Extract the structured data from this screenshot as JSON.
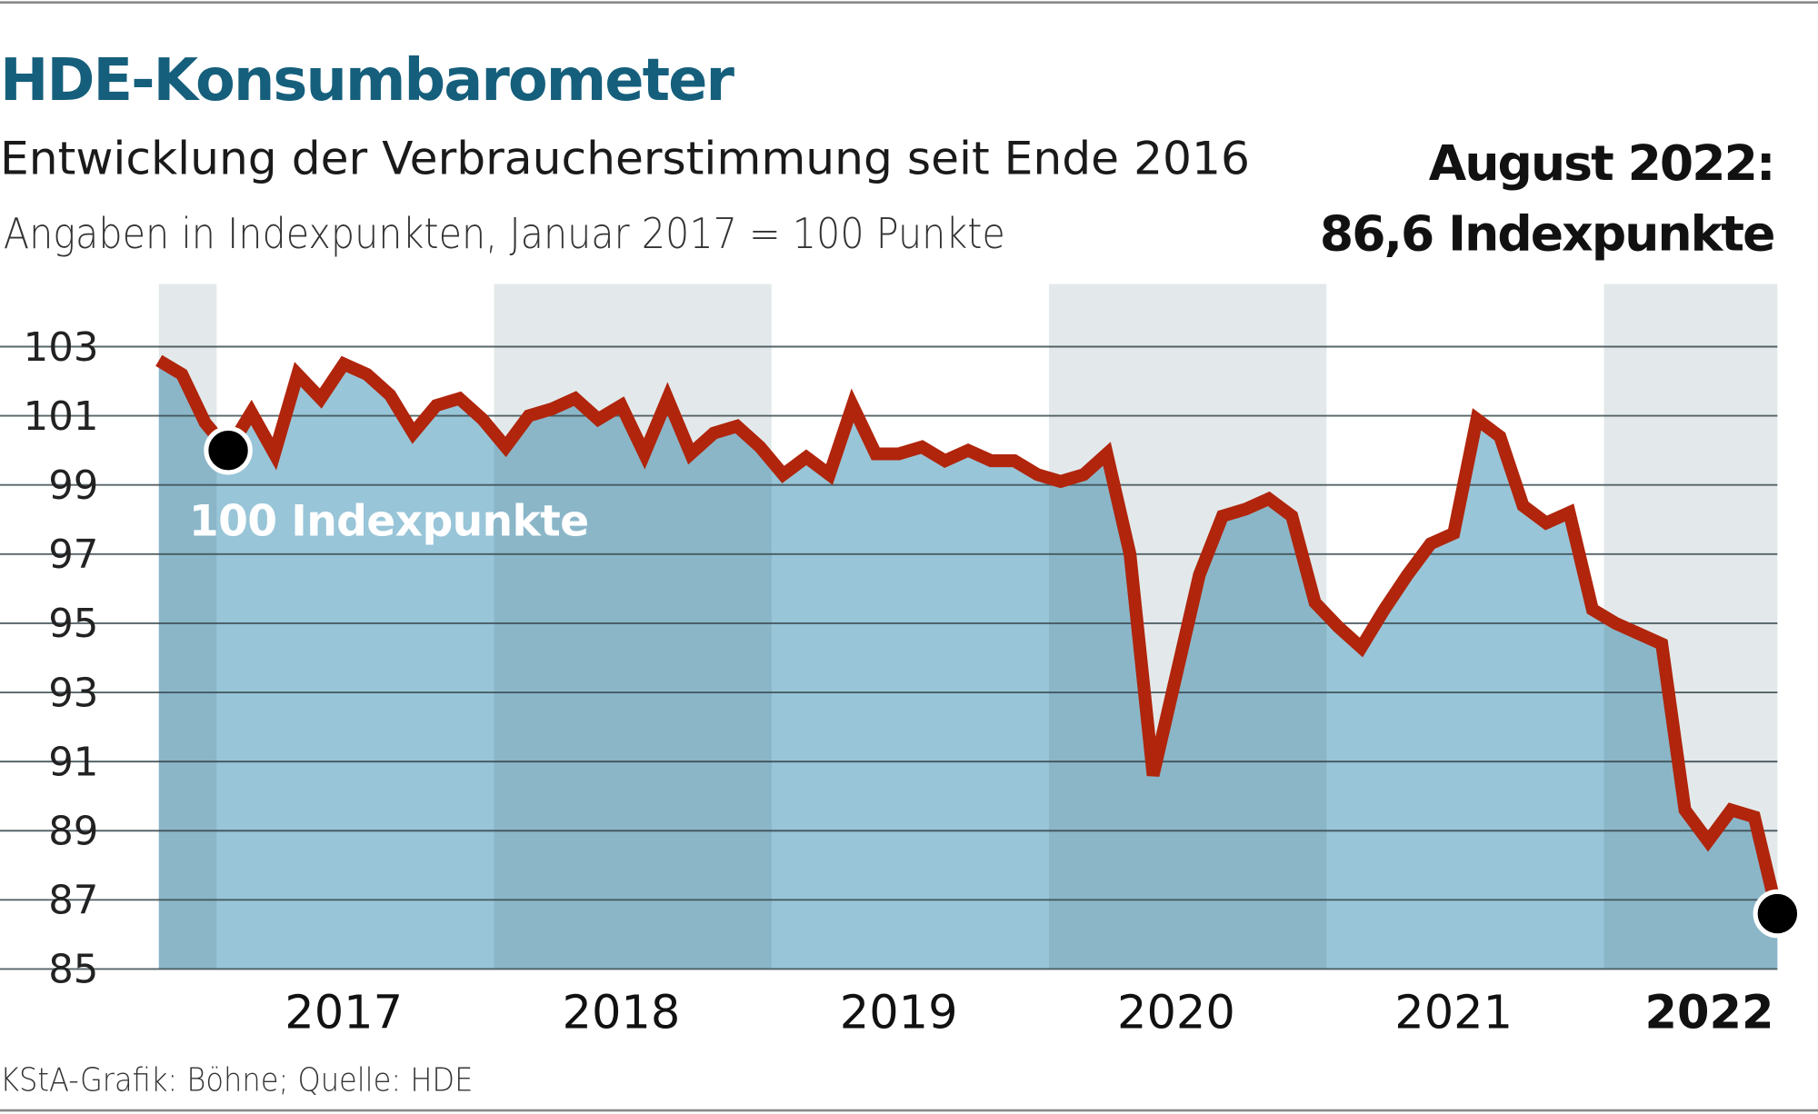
{
  "title": "HDE-Konsumbarometer",
  "subtitle": "Entwicklung der Verbraucherstimmung seit Ende 2016",
  "unit_note": "Angaben in Indexpunkten, Januar 2017 = 100 Punkte",
  "highlight": {
    "line1": "August 2022:",
    "line2": "86,6 Indexpunkte"
  },
  "annotation": "100 Indexpunkte",
  "source": "KStA-Grafik: Böhne; Quelle: HDE",
  "colors": {
    "title": "#155f7c",
    "line": "#b0250c",
    "area": "#98c5d8",
    "area_alt": "#8ab6c8",
    "band_alt": "#e3e9ea",
    "marker": "#000000"
  },
  "chart_data": {
    "type": "area",
    "title": "HDE-Konsumbarometer",
    "xlabel": "",
    "ylabel": "",
    "ylim": [
      85,
      103
    ],
    "yticks": [
      103,
      101,
      99,
      97,
      95,
      93,
      91,
      89,
      87,
      85
    ],
    "year_labels": [
      "2017",
      "2018",
      "2019",
      "2020",
      "2021",
      "2022"
    ],
    "grid": true,
    "x_start": "2016-10",
    "x_end": "2022-08",
    "values": [
      102.6,
      102.2,
      100.8,
      100.0,
      101.1,
      99.9,
      102.2,
      101.5,
      102.5,
      102.2,
      101.6,
      100.5,
      101.3,
      101.5,
      100.9,
      100.1,
      101.0,
      101.2,
      101.5,
      100.9,
      101.3,
      99.9,
      101.5,
      99.9,
      100.5,
      100.7,
      100.1,
      99.3,
      99.8,
      99.3,
      101.3,
      99.9,
      99.9,
      100.1,
      99.7,
      100.0,
      99.7,
      99.7,
      99.3,
      99.1,
      99.3,
      99.9,
      97.0,
      90.6,
      93.5,
      96.4,
      98.1,
      98.3,
      98.6,
      98.1,
      95.6,
      94.9,
      94.3,
      95.4,
      96.4,
      97.3,
      97.6,
      100.9,
      100.4,
      98.4,
      97.9,
      98.2,
      95.4,
      95.0,
      94.7,
      94.4,
      89.6,
      88.7,
      89.6,
      89.4,
      86.6
    ],
    "markers": [
      {
        "date": "2017-01",
        "value": 100.0
      },
      {
        "date": "2022-08",
        "value": 86.6
      }
    ]
  }
}
